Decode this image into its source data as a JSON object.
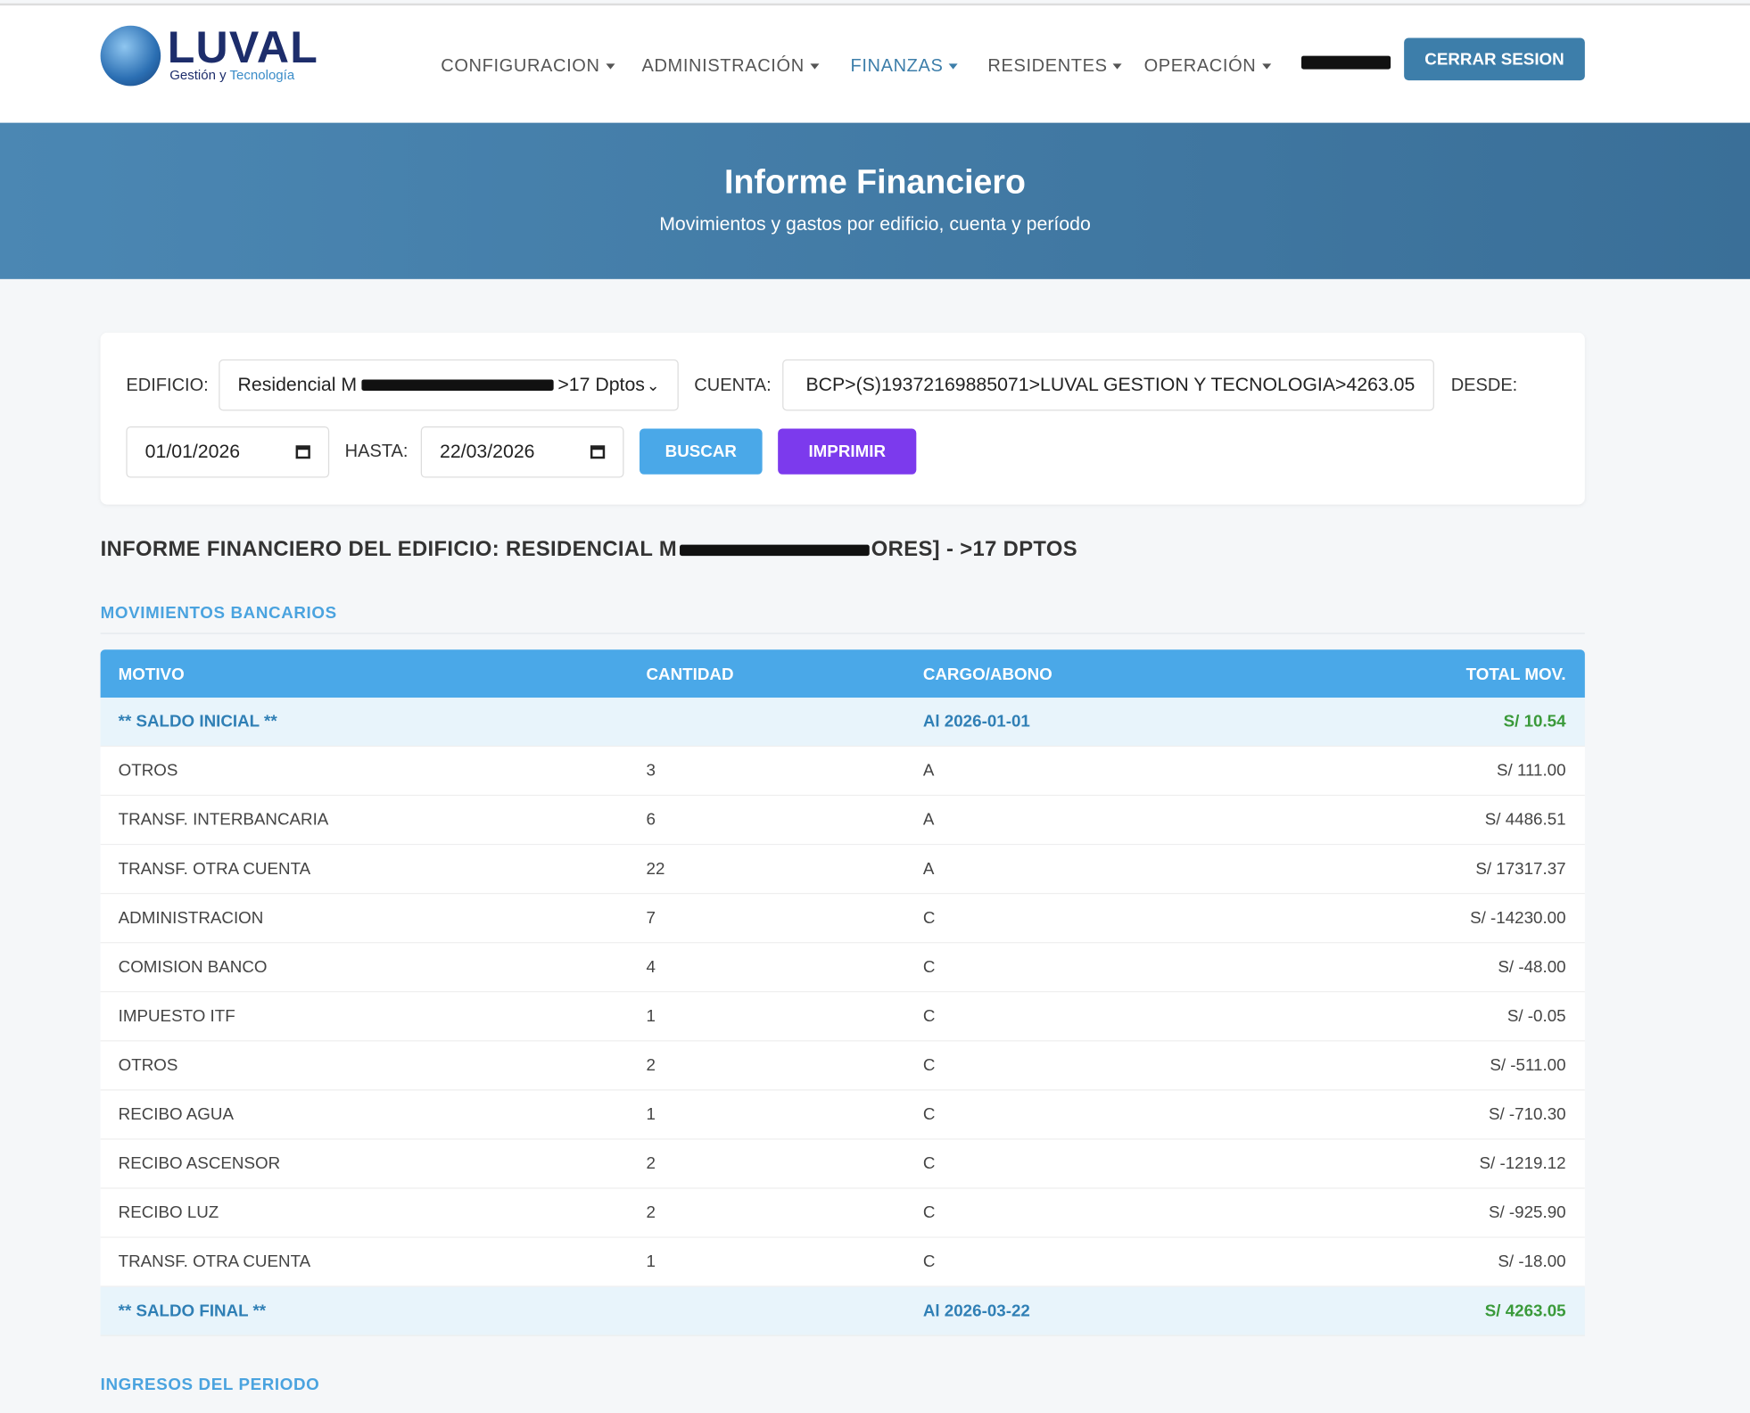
{
  "logo": {
    "name": "LUVAL",
    "tagline_a": "Gestión y",
    "tagline_b": "Tecnología"
  },
  "nav": {
    "items": [
      "CONFIGURACION",
      "ADMINISTRACIÓN",
      "FINANZAS",
      "RESIDENTES",
      "OPERACIÓN"
    ],
    "logout": "CERRAR SESION"
  },
  "header": {
    "title": "Informe Financiero",
    "subtitle": "Movimientos y gastos por edificio, cuenta y período"
  },
  "filters": {
    "edificio_label": "EDIFICIO:",
    "edificio_prefix": "Residencial M",
    "edificio_suffix": ">17 Dptos",
    "cuenta_label": "CUENTA:",
    "cuenta_value": "BCP>(S)19372169885071>LUVAL GESTION Y TECNOLOGIA>4263.05",
    "desde_label": "DESDE:",
    "desde_value": "01/01/2026",
    "hasta_label": "HASTA:",
    "hasta_value": "22/03/2026",
    "buscar": "BUSCAR",
    "imprimir": "IMPRIMIR"
  },
  "report": {
    "title_prefix": "INFORME FINANCIERO DEL EDIFICIO: RESIDENCIAL M",
    "title_suffix": "ORES] - >17 DPTOS"
  },
  "section": {
    "title": "MOVIMIENTOS BANCARIOS",
    "next_title": "INGRESOS DEL PERIODO"
  },
  "table": {
    "headers": [
      "MOTIVO",
      "CANTIDAD",
      "CARGO/ABONO",
      "TOTAL MOV."
    ],
    "saldo_inicial": [
      "** SALDO INICIAL **",
      "Al 2026-01-01",
      "S/ 10.54"
    ],
    "rows": [
      [
        "OTROS",
        "3",
        "A",
        "S/ 111.00"
      ],
      [
        "TRANSF. INTERBANCARIA",
        "6",
        "A",
        "S/ 4486.51"
      ],
      [
        "TRANSF. OTRA CUENTA",
        "22",
        "A",
        "S/ 17317.37"
      ],
      [
        "ADMINISTRACION",
        "7",
        "C",
        "S/ -14230.00"
      ],
      [
        "COMISION BANCO",
        "4",
        "C",
        "S/ -48.00"
      ],
      [
        "IMPUESTO ITF",
        "1",
        "C",
        "S/ -0.05"
      ],
      [
        "OTROS",
        "2",
        "C",
        "S/ -511.00"
      ],
      [
        "RECIBO AGUA",
        "1",
        "C",
        "S/ -710.30"
      ],
      [
        "RECIBO ASCENSOR",
        "2",
        "C",
        "S/ -1219.12"
      ],
      [
        "RECIBO LUZ",
        "2",
        "C",
        "S/ -925.90"
      ],
      [
        "TRANSF. OTRA CUENTA",
        "1",
        "C",
        "S/ -18.00"
      ]
    ],
    "saldo_final": [
      "** SALDO FINAL **",
      "Al 2026-03-22",
      "S/ 4263.05"
    ]
  }
}
